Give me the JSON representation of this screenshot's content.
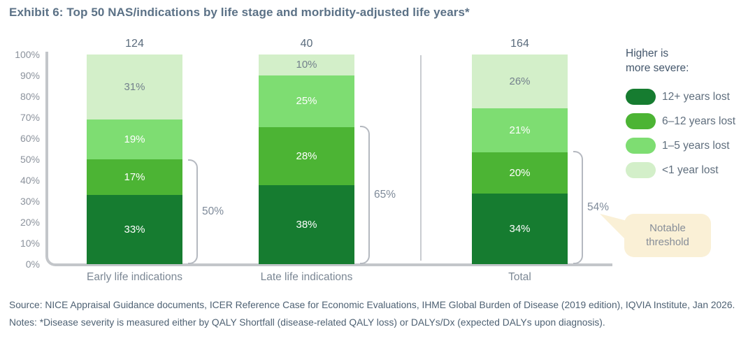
{
  "title": "Exhibit 6: Top 50 NAS/indications by life stage and morbidity-adjusted life years*",
  "chart_data": {
    "type": "bar",
    "stacked": true,
    "categories": [
      "Early life indications",
      "Late life indications",
      "Total"
    ],
    "bar_totals": [
      "124",
      "40",
      "164"
    ],
    "series": [
      {
        "name": "12+ years lost",
        "color": "#167c30",
        "label_color": "#ffffff",
        "values": [
          33,
          38,
          34
        ]
      },
      {
        "name": "6–12 years lost",
        "color": "#4cb434",
        "label_color": "#ffffff",
        "values": [
          17,
          28,
          20
        ]
      },
      {
        "name": "1–5 years lost",
        "color": "#7edd72",
        "label_color": "#ffffff",
        "values": [
          19,
          25,
          21
        ]
      },
      {
        "name": "<1 year lost",
        "color": "#d3efc9",
        "label_color": "#73808c",
        "values": [
          31,
          10,
          26
        ]
      }
    ],
    "y_ticks": [
      "0%",
      "10%",
      "20%",
      "30%",
      "40%",
      "50%",
      "60%",
      "70%",
      "80%",
      "90%",
      "100%"
    ],
    "ylim": [
      0,
      100
    ],
    "grid": false,
    "legend_position": "right",
    "brackets": [
      {
        "category_index": 0,
        "label": "50%",
        "span_pct": 50
      },
      {
        "category_index": 1,
        "label": "65%",
        "span_pct": 66
      },
      {
        "category_index": 2,
        "label": "54%",
        "span_pct": 54
      }
    ],
    "legend": {
      "title_line1": "Higher is",
      "title_line2": "more severe:"
    }
  },
  "callout": {
    "line1": "Notable",
    "line2": "threshold",
    "bg_color": "#faf0d6"
  },
  "footer": {
    "source": "Source: NICE Appraisal Guidance documents, ICER Reference Case for Economic Evaluations, IHME Global Burden of Disease (2019 edition), IQVIA Institute, Jan 2026.",
    "notes": "Notes: *Disease severity is measured either by QALY Shortfall (disease-related QALY loss) or DALYs/Dx (expected DALYs upon diagnosis)."
  },
  "colors": {
    "axis": "#c3c6ca",
    "bracket": "#b5b9c0",
    "title_text": "#5b7186"
  }
}
